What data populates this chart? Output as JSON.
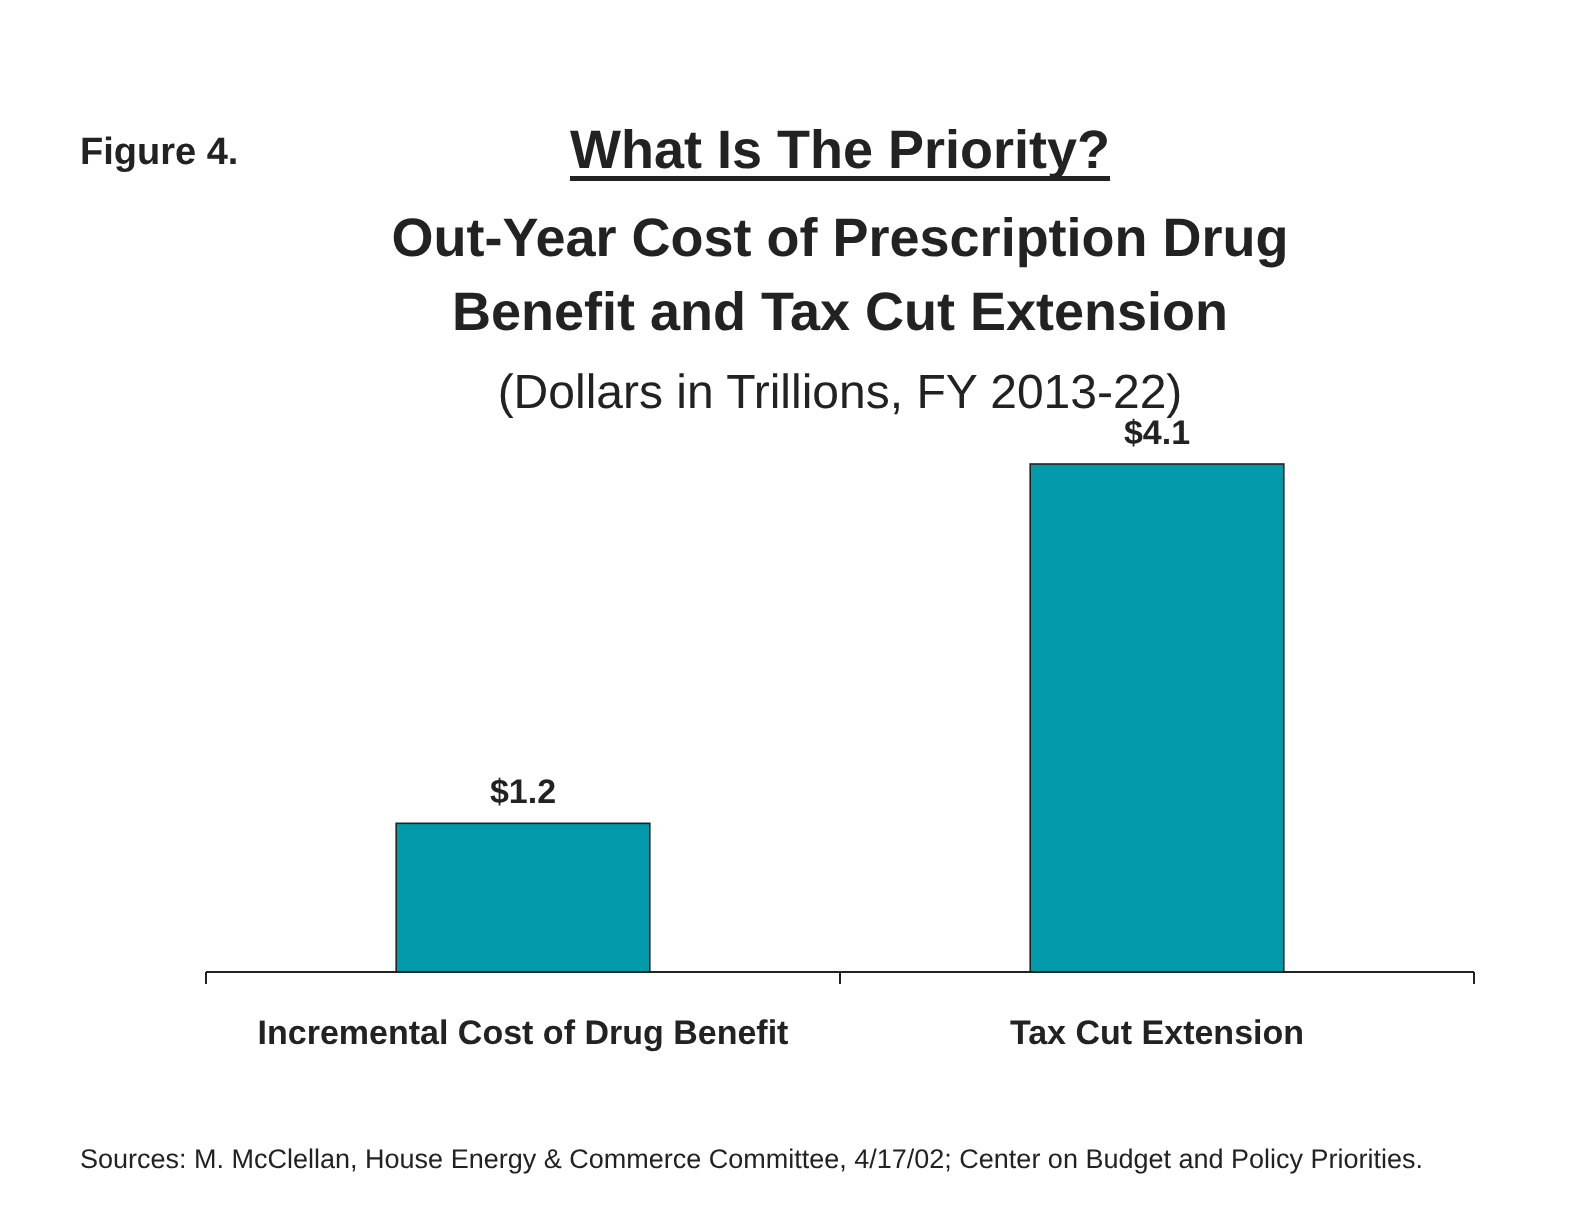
{
  "chart_data": {
    "type": "bar",
    "title": "What Is The Priority?",
    "subtitle": "Out-Year Cost of Prescription Drug Benefit and Tax Cut Extension",
    "categories": [
      "Incremental Cost of Drug Benefit",
      "Tax Cut Extension"
    ],
    "values": [
      1.2,
      4.1
    ],
    "value_labels": [
      "$1.2",
      "$4.1"
    ],
    "color": "#009aab",
    "annotations": [
      "Figure 4.",
      "(Dollars in Trillions, FY 2013-22)",
      "Sources: M. McClellan, House Energy & Commerce Committee, 4/17/02; Center on Budget and Policy Priorities."
    ]
  }
}
